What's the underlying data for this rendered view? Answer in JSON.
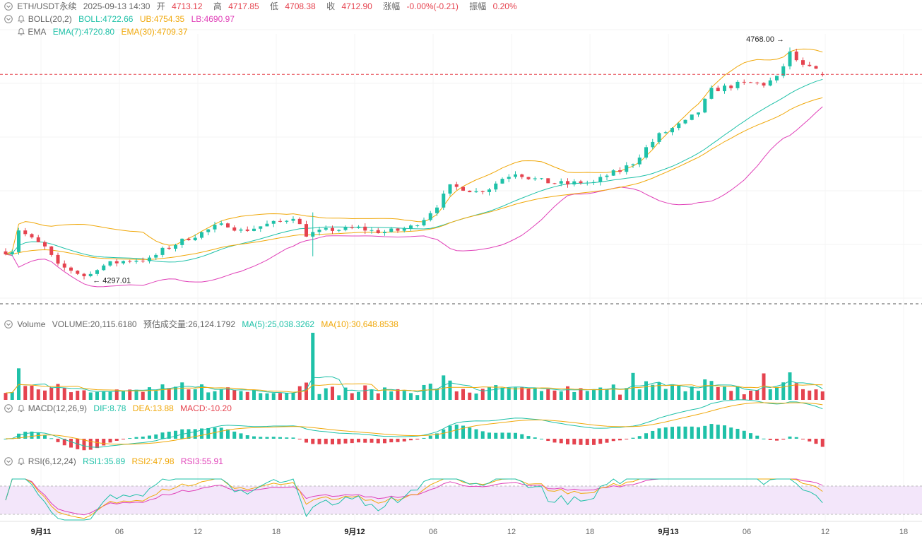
{
  "header": {
    "symbol": "ETH/USDT永续",
    "datetime": "2025-09-13 14:30",
    "open_label": "开",
    "open": "4713.12",
    "high_label": "高",
    "high": "4717.85",
    "low_label": "低",
    "low": "4708.38",
    "close_label": "收",
    "close": "4712.90",
    "change_label": "涨幅",
    "change": "-0.00%(-0.21)",
    "amp_label": "振幅",
    "amp": "0.20%"
  },
  "boll": {
    "label": "BOLL(20,2)",
    "mid": "BOLL:4722.66",
    "ub": "UB:4754.35",
    "lb": "LB:4690.97"
  },
  "ema": {
    "label": "EMA",
    "ema7": "EMA(7):4720.80",
    "ema30": "EMA(30):4709.37"
  },
  "volume": {
    "label": "Volume",
    "vol": "VOLUME:20,115.6180",
    "est": "预估成交量:26,124.1792",
    "ma5": "MA(5):25,038.3262",
    "ma10": "MA(10):30,648.8538"
  },
  "macd": {
    "label": "MACD(12,26,9)",
    "dif": "DIF:8.78",
    "dea": "DEA:13.88",
    "macd": "MACD:-10.20"
  },
  "rsi": {
    "label": "RSI(6,12,24)",
    "rsi1": "RSI1:35.89",
    "rsi2": "RSI2:47.98",
    "rsi3": "RSI3:55.91"
  },
  "colors": {
    "up": "#e5434f",
    "down": "#1fc1a8",
    "boll_mid": "#1fc1a8",
    "boll_ub": "#f0a80a",
    "boll_lb": "#e040b8",
    "ema7": "#1fc1a8",
    "ema30": "#f0a80a",
    "rsi1": "#1fc1a8",
    "rsi2": "#f0a80a",
    "rsi3": "#e040b8"
  },
  "chart_data": {
    "type": "candlestick",
    "price_range": [
      4260,
      4790
    ],
    "current_price": 4712.9,
    "annotations": [
      {
        "label": "4768.00",
        "price": 4768.0
      },
      {
        "label": "4297.01",
        "price": 4297.01
      }
    ],
    "x_ticks": [
      "9月11",
      "06",
      "12",
      "18",
      "9月12",
      "06",
      "12",
      "18",
      "9月13",
      "06",
      "12",
      "18"
    ],
    "x_tick_hours": [
      0,
      6,
      12,
      18,
      24,
      30,
      36,
      42,
      48,
      54,
      60,
      66
    ],
    "last_candle_hour": 62.5,
    "close_profile": [
      [
        0,
        4350
      ],
      [
        0.5,
        4352
      ],
      [
        1,
        4395
      ],
      [
        1.5,
        4385
      ],
      [
        2,
        4375
      ],
      [
        3,
        4358
      ],
      [
        4,
        4320
      ],
      [
        5,
        4312
      ],
      [
        6,
        4300
      ],
      [
        6.5,
        4303
      ],
      [
        7,
        4317
      ],
      [
        8,
        4325
      ],
      [
        9,
        4330
      ],
      [
        10,
        4333
      ],
      [
        11,
        4333
      ],
      [
        12,
        4352
      ],
      [
        13,
        4365
      ],
      [
        14,
        4378
      ],
      [
        15,
        4388
      ],
      [
        16,
        4400
      ],
      [
        17,
        4405
      ],
      [
        18,
        4392
      ],
      [
        19,
        4398
      ],
      [
        20,
        4405
      ],
      [
        21,
        4410
      ],
      [
        22,
        4422
      ],
      [
        23,
        4385
      ],
      [
        24,
        4390
      ],
      [
        25,
        4395
      ],
      [
        26,
        4395
      ],
      [
        27,
        4398
      ],
      [
        28,
        4392
      ],
      [
        29,
        4390
      ],
      [
        30,
        4393
      ],
      [
        31,
        4400
      ],
      [
        32,
        4418
      ],
      [
        33,
        4445
      ],
      [
        34,
        4482
      ],
      [
        35,
        4480
      ],
      [
        36,
        4472
      ],
      [
        37,
        4480
      ],
      [
        38,
        4500
      ],
      [
        39,
        4512
      ],
      [
        40,
        4502
      ],
      [
        41,
        4494
      ],
      [
        42,
        4490
      ],
      [
        43,
        4488
      ],
      [
        44,
        4492
      ],
      [
        45,
        4490
      ],
      [
        46,
        4506
      ],
      [
        47,
        4515
      ],
      [
        48,
        4532
      ],
      [
        49,
        4562
      ],
      [
        50,
        4588
      ],
      [
        51,
        4602
      ],
      [
        52,
        4615
      ],
      [
        53,
        4636
      ],
      [
        54,
        4680
      ],
      [
        55,
        4686
      ],
      [
        56,
        4692
      ],
      [
        57,
        4695
      ],
      [
        58,
        4693
      ],
      [
        59,
        4705
      ],
      [
        60,
        4756
      ],
      [
        61,
        4728
      ],
      [
        62,
        4722
      ],
      [
        62.5,
        4713
      ]
    ],
    "indicators": {
      "bollinger": {
        "period": 20,
        "stddev": 2
      },
      "ema": [
        7,
        30
      ],
      "volume_ma": [
        5,
        10
      ],
      "macd": [
        12,
        26,
        9
      ],
      "rsi": [
        6,
        12,
        24
      ],
      "rsi_band": [
        30,
        70
      ]
    }
  }
}
